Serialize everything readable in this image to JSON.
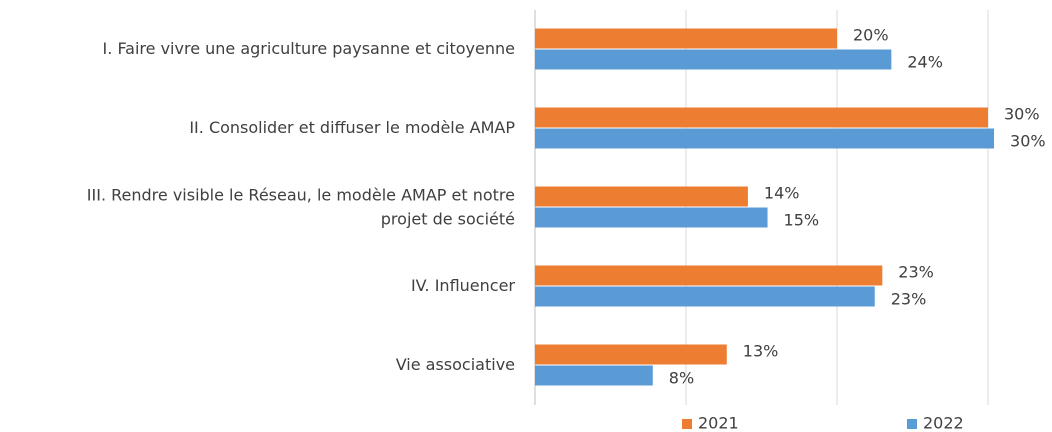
{
  "chart_data": {
    "type": "hbar",
    "categories": [
      "I. Faire vivre une agriculture paysanne et citoyenne",
      "II. Consolider et diffuser le modèle AMAP",
      "III. Rendre visible le Réseau, le modèle AMAP et notre projet de société",
      "IV. Influencer",
      "Vie associative"
    ],
    "series": [
      {
        "name": "2021",
        "color": "#ed7d31",
        "values": [
          20,
          30,
          14.1,
          23,
          12.7
        ],
        "value_labels": [
          "20%",
          "30%",
          "14%",
          "23%",
          "13%"
        ]
      },
      {
        "name": "2022",
        "color": "#5b9bd5",
        "values": [
          23.6,
          30.4,
          15.4,
          22.5,
          7.8
        ],
        "value_labels": [
          "24%",
          "30%",
          "15%",
          "23%",
          "8%"
        ]
      }
    ],
    "xlim": [
      0,
      32
    ],
    "xticks": [
      0,
      10,
      20,
      30
    ],
    "grid": true,
    "legend": "bottom"
  }
}
